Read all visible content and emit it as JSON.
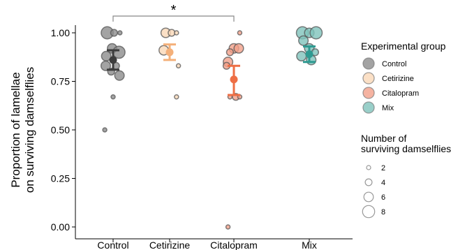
{
  "chart_data": {
    "type": "scatter",
    "ylabel": "Proportion of lamellae\non surviving damselflies",
    "ylim": [
      0,
      1
    ],
    "yticks": [
      0.0,
      0.25,
      0.5,
      0.75,
      1.0
    ],
    "ytick_labels": [
      "0.00",
      "0.25",
      "0.50",
      "0.75",
      "1.00"
    ],
    "categories": [
      "Control",
      "Cetirizine",
      "Citalopram",
      "Mix"
    ],
    "significance": {
      "from": "Control",
      "to": "Citalopram",
      "label": "*"
    },
    "series": [
      {
        "name": "Control",
        "color": "#8c8c8c",
        "summary_color": "#3c3c3c",
        "mean": 0.86,
        "ci_low": 0.81,
        "ci_high": 0.91,
        "points": [
          {
            "y": 1.0,
            "n": 8,
            "dx": -0.12
          },
          {
            "y": 1.0,
            "n": 4,
            "dx": 0.02
          },
          {
            "y": 1.0,
            "n": 2,
            "dx": 0.14
          },
          {
            "y": 0.92,
            "n": 6,
            "dx": -0.02
          },
          {
            "y": 0.9,
            "n": 8,
            "dx": 0.12
          },
          {
            "y": 0.88,
            "n": 6,
            "dx": -0.14
          },
          {
            "y": 0.83,
            "n": 6,
            "dx": -0.15
          },
          {
            "y": 0.83,
            "n": 4,
            "dx": 0.06
          },
          {
            "y": 0.8,
            "n": 4,
            "dx": -0.04
          },
          {
            "y": 0.78,
            "n": 6,
            "dx": 0.13
          },
          {
            "y": 0.67,
            "n": 2,
            "dx": 0.0
          },
          {
            "y": 0.5,
            "n": 2,
            "dx": -0.17
          }
        ]
      },
      {
        "name": "Cetirizine",
        "color": "#fad8b8",
        "summary_color": "#f4b07a",
        "mean": 0.9,
        "ci_low": 0.86,
        "ci_high": 0.94,
        "points": [
          {
            "y": 1.0,
            "n": 6,
            "dx": -0.08
          },
          {
            "y": 1.0,
            "n": 4,
            "dx": 0.04
          },
          {
            "y": 1.0,
            "n": 2,
            "dx": 0.14
          },
          {
            "y": 0.91,
            "n": 6,
            "dx": -0.12
          },
          {
            "y": 0.83,
            "n": 2,
            "dx": 0.18
          },
          {
            "y": 0.67,
            "n": 2,
            "dx": 0.14
          }
        ]
      },
      {
        "name": "Citalopram",
        "color": "#f2a08a",
        "summary_color": "#ee6e44",
        "mean": 0.76,
        "ci_low": 0.68,
        "ci_high": 0.83,
        "points": [
          {
            "y": 1.0,
            "n": 2,
            "dx": 0.12
          },
          {
            "y": 0.92,
            "n": 6,
            "dx": 0.0
          },
          {
            "y": 0.92,
            "n": 6,
            "dx": 0.1
          },
          {
            "y": 0.9,
            "n": 4,
            "dx": -0.08
          },
          {
            "y": 0.85,
            "n": 6,
            "dx": -0.12
          },
          {
            "y": 0.83,
            "n": 4,
            "dx": -0.15
          },
          {
            "y": 0.67,
            "n": 2,
            "dx": -0.08
          },
          {
            "y": 0.67,
            "n": 4,
            "dx": 0.04
          },
          {
            "y": 0.67,
            "n": 2,
            "dx": 0.12
          },
          {
            "y": 0.0,
            "n": 2,
            "dx": -0.12
          }
        ]
      },
      {
        "name": "Mix",
        "color": "#7fc3bc",
        "summary_color": "#2e9a91",
        "mean": 0.89,
        "ci_low": 0.85,
        "ci_high": 0.93,
        "points": [
          {
            "y": 1.0,
            "n": 8,
            "dx": -0.14
          },
          {
            "y": 1.0,
            "n": 6,
            "dx": 0.0
          },
          {
            "y": 1.0,
            "n": 8,
            "dx": 0.14
          },
          {
            "y": 0.96,
            "n": 6,
            "dx": -0.12
          },
          {
            "y": 0.92,
            "n": 6,
            "dx": 0.0
          },
          {
            "y": 0.9,
            "n": 4,
            "dx": 0.12
          },
          {
            "y": 0.88,
            "n": 6,
            "dx": -0.16
          },
          {
            "y": 0.86,
            "n": 6,
            "dx": 0.04
          }
        ]
      }
    ],
    "legend_groups": {
      "title": "Experimental group",
      "items": [
        "Control",
        "Cetirizine",
        "Citalopram",
        "Mix"
      ]
    },
    "legend_sizes": {
      "title": "Number of\nsurviving damselflies",
      "items": [
        {
          "label": "2",
          "n": 2
        },
        {
          "label": "4",
          "n": 4
        },
        {
          "label": "6",
          "n": 6
        },
        {
          "label": "8",
          "n": 8
        }
      ]
    }
  }
}
